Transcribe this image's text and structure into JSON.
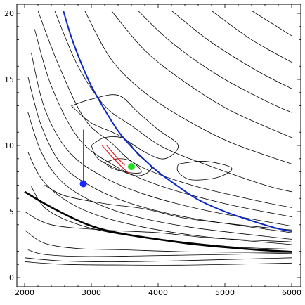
{
  "chart_data": {
    "type": "line",
    "title": "",
    "xlabel": "",
    "ylabel": "",
    "xlim": [
      2000,
      6000
    ],
    "ylim": [
      0,
      20
    ],
    "x_ticks": [
      2000,
      3000,
      4000,
      5000,
      6000
    ],
    "y_ticks": [
      0,
      5,
      10,
      15,
      20
    ],
    "x_tick_labels": [
      "2000",
      "3000",
      "4000",
      "5000",
      "6000"
    ],
    "y_tick_labels": [
      "0",
      "5",
      "10",
      "15",
      "20"
    ],
    "grid": false,
    "colors": {
      "blue_curve": "#0a28c8",
      "black_curve": "#000000",
      "red_path": "#e02020",
      "blue_point": "#1428ff",
      "green_point": "#22dd22",
      "contours": "#000000"
    },
    "series": [
      {
        "kind": "curve",
        "color": "blue",
        "points": [
          [
            2580,
            20.2
          ],
          [
            2700,
            18.2
          ],
          [
            2850,
            16.2
          ],
          [
            3000,
            14.5
          ],
          [
            3200,
            12.7
          ],
          [
            3400,
            11.1
          ],
          [
            3600,
            9.9
          ],
          [
            3800,
            8.9
          ],
          [
            4000,
            8.0
          ],
          [
            4300,
            6.9
          ],
          [
            4600,
            5.9
          ],
          [
            5000,
            5.0
          ],
          [
            5400,
            4.3
          ],
          [
            5800,
            3.7
          ],
          [
            6000,
            3.5
          ]
        ]
      },
      {
        "kind": "curve",
        "color": "black",
        "points": [
          [
            2000,
            6.5
          ],
          [
            2300,
            5.6
          ],
          [
            2600,
            4.8
          ],
          [
            2900,
            4.1
          ],
          [
            3200,
            3.6
          ],
          [
            3600,
            3.2
          ],
          [
            4000,
            2.9
          ],
          [
            4500,
            2.55
          ],
          [
            5000,
            2.3
          ],
          [
            5500,
            2.1
          ],
          [
            6000,
            1.95
          ]
        ]
      },
      {
        "kind": "path",
        "color": "red",
        "points": [
          [
            2880,
            11.2
          ],
          [
            2880,
            7.1
          ]
        ]
      },
      {
        "kind": "path",
        "color": "red",
        "points": [
          [
            3160,
            10.0
          ],
          [
            3300,
            9.2
          ],
          [
            3450,
            8.4
          ],
          [
            3560,
            7.9
          ]
        ]
      },
      {
        "kind": "path",
        "color": "red",
        "points": [
          [
            3230,
            10.0
          ],
          [
            3380,
            9.1
          ],
          [
            3500,
            8.5
          ]
        ]
      },
      {
        "kind": "point",
        "color": "blue",
        "x": 2880,
        "y": 7.1
      },
      {
        "kind": "point",
        "color": "green",
        "x": 3600,
        "y": 8.4
      }
    ],
    "contours": [
      [
        [
          2000,
          1.2
        ],
        [
          2600,
          1.0
        ],
        [
          3500,
          0.95
        ],
        [
          4500,
          0.95
        ],
        [
          6000,
          1.1
        ]
      ],
      [
        [
          2000,
          1.5
        ],
        [
          2600,
          1.25
        ],
        [
          3500,
          1.2
        ],
        [
          4500,
          1.3
        ],
        [
          6000,
          1.5
        ]
      ],
      [
        [
          2050,
          2.1
        ],
        [
          2300,
          1.75
        ],
        [
          2900,
          1.6
        ],
        [
          3800,
          1.65
        ],
        [
          5000,
          1.75
        ],
        [
          6000,
          1.85
        ]
      ],
      [
        [
          2000,
          3.6
        ],
        [
          2300,
          2.6
        ],
        [
          2800,
          2.2
        ],
        [
          3500,
          2.1
        ],
        [
          4500,
          1.95
        ],
        [
          6000,
          1.9
        ]
      ],
      [
        [
          2100,
          6.9
        ],
        [
          2300,
          5.3
        ],
        [
          2700,
          4.2
        ],
        [
          3300,
          3.4
        ],
        [
          4200,
          2.8
        ],
        [
          5200,
          2.3
        ],
        [
          6000,
          2.15
        ]
      ],
      [
        [
          2050,
          9.5
        ],
        [
          2250,
          7.5
        ],
        [
          2600,
          5.9
        ],
        [
          3100,
          4.7
        ],
        [
          3800,
          3.8
        ],
        [
          4700,
          3.1
        ],
        [
          6000,
          2.5
        ]
      ],
      [
        [
          2050,
          12.5
        ],
        [
          2250,
          9.5
        ],
        [
          2550,
          7.3
        ],
        [
          3000,
          5.8
        ],
        [
          3600,
          4.7
        ],
        [
          4500,
          3.8
        ],
        [
          6000,
          2.9
        ]
      ],
      [
        [
          2050,
          15.2
        ],
        [
          2250,
          11.5
        ],
        [
          2550,
          8.6
        ],
        [
          3000,
          6.9
        ],
        [
          3600,
          5.6
        ],
        [
          4500,
          4.5
        ],
        [
          6000,
          3.4
        ]
      ],
      [
        [
          2100,
          17.0
        ],
        [
          2300,
          12.8
        ],
        [
          2650,
          9.6
        ],
        [
          3150,
          7.7
        ],
        [
          3800,
          6.3
        ],
        [
          4700,
          5.1
        ],
        [
          6000,
          3.9
        ]
      ],
      [
        [
          2150,
          18.8
        ],
        [
          2400,
          14.5
        ],
        [
          2800,
          10.6
        ],
        [
          3300,
          8.6
        ],
        [
          4000,
          7.0
        ],
        [
          5000,
          5.6
        ],
        [
          6000,
          4.6
        ]
      ],
      [
        [
          2200,
          20.2
        ],
        [
          2500,
          16.2
        ],
        [
          2900,
          12.0
        ],
        [
          3300,
          10.2
        ],
        [
          3700,
          8.5
        ],
        [
          4500,
          7.0
        ],
        [
          5500,
          5.8
        ],
        [
          6000,
          5.3
        ]
      ],
      [
        [
          2450,
          20.2
        ],
        [
          2800,
          16.0
        ],
        [
          3200,
          13.0
        ],
        [
          3600,
          11.5
        ],
        [
          4100,
          9.8
        ],
        [
          4800,
          8.4
        ],
        [
          5600,
          7.0
        ],
        [
          6000,
          6.5
        ]
      ],
      [
        [
          2900,
          20.2
        ],
        [
          3300,
          16.5
        ],
        [
          3800,
          14.0
        ],
        [
          4400,
          12.0
        ],
        [
          5100,
          10.2
        ],
        [
          6000,
          8.6
        ]
      ],
      [
        [
          3300,
          20.2
        ],
        [
          3800,
          17.2
        ],
        [
          4400,
          14.8
        ],
        [
          5100,
          12.6
        ],
        [
          6000,
          10.6
        ]
      ],
      [
        [
          3700,
          20.2
        ],
        [
          4200,
          17.8
        ],
        [
          4900,
          15.3
        ],
        [
          5600,
          13.4
        ],
        [
          6000,
          12.5
        ]
      ],
      [
        [
          4200,
          20.2
        ],
        [
          4800,
          17.8
        ],
        [
          5500,
          15.6
        ],
        [
          6000,
          14.3
        ]
      ],
      [
        [
          4800,
          20.2
        ],
        [
          5400,
          18.0
        ],
        [
          6000,
          16.3
        ]
      ],
      [
        [
          5400,
          20.2
        ],
        [
          6000,
          18.3
        ]
      ],
      [
        [
          3000,
          10.0
        ],
        [
          3200,
          10.6
        ],
        [
          3500,
          10.5
        ],
        [
          3700,
          9.3
        ],
        [
          3900,
          8.3
        ],
        [
          3700,
          7.7
        ],
        [
          3400,
          8.2
        ],
        [
          3100,
          9.0
        ],
        [
          3000,
          10.0
        ]
      ],
      [
        [
          3200,
          8.7
        ],
        [
          3400,
          9.0
        ],
        [
          3600,
          8.8
        ],
        [
          3750,
          8.0
        ],
        [
          3550,
          7.95
        ],
        [
          3300,
          8.3
        ],
        [
          3200,
          8.7
        ]
      ],
      [
        [
          2700,
          13.0
        ],
        [
          3000,
          13.5
        ],
        [
          3400,
          13.8
        ],
        [
          3700,
          12.5
        ],
        [
          4000,
          11.2
        ],
        [
          4300,
          10.0
        ],
        [
          4100,
          9.0
        ],
        [
          3800,
          9.5
        ],
        [
          3400,
          10.8
        ],
        [
          3000,
          11.7
        ],
        [
          2700,
          13.0
        ]
      ],
      [
        [
          4300,
          8.6
        ],
        [
          4700,
          8.8
        ],
        [
          5100,
          8.3
        ],
        [
          4900,
          7.6
        ],
        [
          4500,
          7.4
        ],
        [
          4300,
          8.0
        ],
        [
          4300,
          8.6
        ]
      ],
      [
        [
          2300,
          7.0
        ],
        [
          2600,
          6.2
        ],
        [
          3200,
          5.6
        ],
        [
          3800,
          5.2
        ],
        [
          4400,
          4.5
        ],
        [
          5200,
          4.0
        ],
        [
          6000,
          3.6
        ]
      ],
      [
        [
          2000,
          5.0
        ],
        [
          2400,
          4.0
        ],
        [
          3200,
          3.6
        ],
        [
          4000,
          3.4
        ],
        [
          4800,
          3.0
        ],
        [
          6000,
          2.7
        ]
      ]
    ]
  }
}
